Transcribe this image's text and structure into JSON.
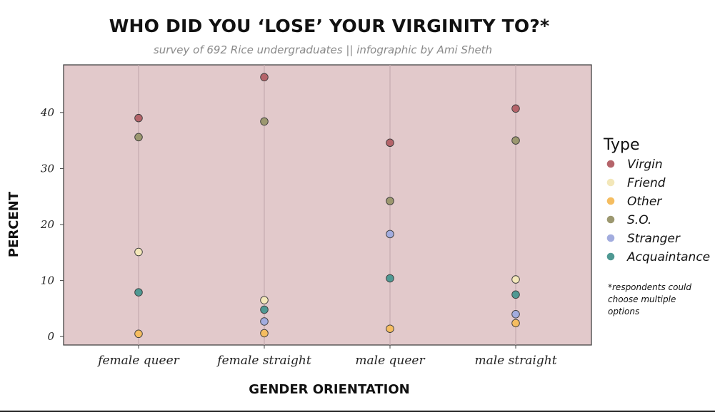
{
  "chart_data": {
    "type": "scatter",
    "title": "WHO DID YOU ‘LOSE’ YOUR VIRGINITY TO?*",
    "subtitle": "survey of 692 Rice undergraduates || infographic by Ami Sheth",
    "xlabel": "GENDER ORIENTATION",
    "ylabel": "PERCENT",
    "categories": [
      "female queer",
      "female straight",
      "male queer",
      "male straight"
    ],
    "ylim": [
      -1.5,
      48.5
    ],
    "yticks": [
      0,
      10,
      20,
      30,
      40
    ],
    "grid": "vertical lines at categories",
    "background_color": "#e2c9cb",
    "legend": {
      "title": "Type",
      "placement": "right",
      "note": "*respondents could choose multiple options"
    },
    "series": [
      {
        "name": "Virgin",
        "color": "#b5646a",
        "values": [
          39.0,
          46.3,
          34.6,
          40.7
        ]
      },
      {
        "name": "Friend",
        "color": "#f3e7b9",
        "values": [
          15.1,
          6.5,
          null,
          10.2
        ]
      },
      {
        "name": "Other",
        "color": "#f5bd60",
        "values": [
          0.5,
          0.6,
          1.4,
          2.4
        ]
      },
      {
        "name": "S.O.",
        "color": "#9c9870",
        "values": [
          35.6,
          38.4,
          24.2,
          35.0
        ]
      },
      {
        "name": "Stranger",
        "color": "#a2acde",
        "values": [
          null,
          2.7,
          18.3,
          4.0
        ]
      },
      {
        "name": "Acquaintance",
        "color": "#4f9993",
        "values": [
          7.9,
          4.8,
          10.4,
          7.5
        ]
      }
    ]
  }
}
